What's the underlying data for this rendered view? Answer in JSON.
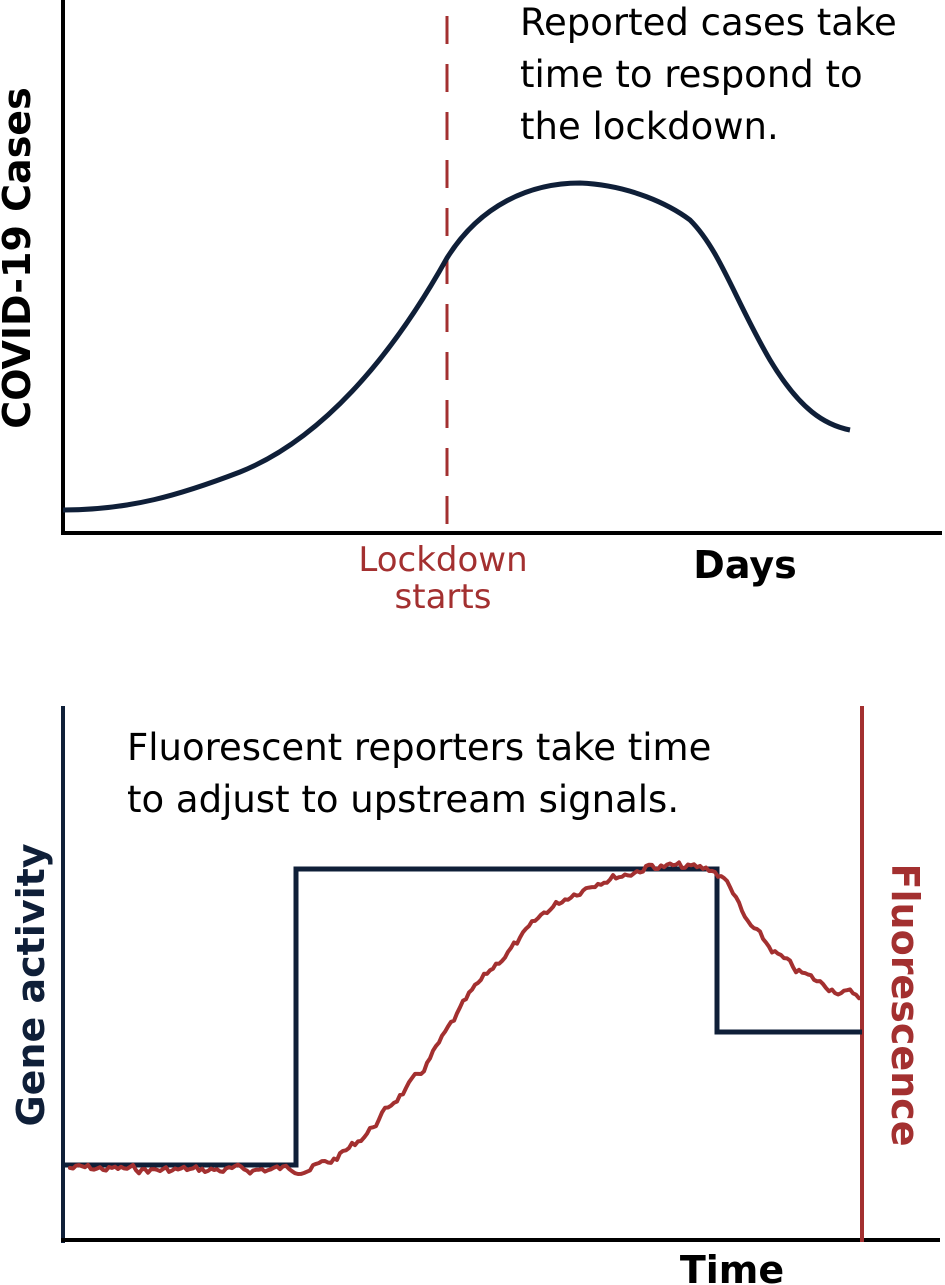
{
  "colors": {
    "navy": "#0f1f38",
    "red": "#a33030",
    "black": "#000000"
  },
  "top_panel": {
    "ylabel": "COVID-19 Cases",
    "xlabel": "Days",
    "annotation": [
      "Reported cases take",
      "time to respond to",
      "the lockdown."
    ],
    "event_label": [
      "Lockdown",
      "starts"
    ]
  },
  "bottom_panel": {
    "annotation": [
      "Fluorescent reporters take time",
      "to adjust to upstream signals."
    ],
    "ylabel_left": "Gene activity",
    "ylabel_right": "Fluorescence",
    "xlabel": "Time"
  }
}
